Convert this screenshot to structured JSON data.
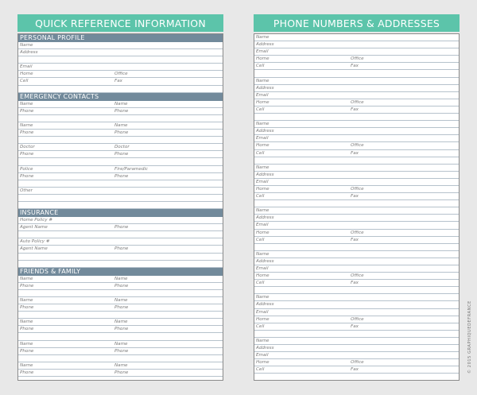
{
  "colors": {
    "header": "#5cc4aa",
    "section": "#728a9b",
    "background": "#e8e8e8"
  },
  "left": {
    "title": "QUICK REFERENCE INFORMATION",
    "sections": [
      {
        "title": "PERSONAL PROFILE",
        "rows": [
          [
            "Name",
            ""
          ],
          [
            "Address",
            ""
          ],
          [
            "",
            ""
          ],
          [
            "Email",
            ""
          ],
          [
            "Home",
            "Office"
          ],
          [
            "Cell",
            "Fax"
          ],
          [
            "",
            ""
          ]
        ]
      },
      {
        "title": "EMERGENCY CONTACTS",
        "rows": [
          [
            "Name",
            "Name"
          ],
          [
            "Phone",
            "Phone"
          ],
          [
            "",
            ""
          ],
          [
            "Name",
            "Name"
          ],
          [
            "Phone",
            "Phone"
          ],
          [
            "",
            ""
          ],
          [
            "Doctor",
            "Doctor"
          ],
          [
            "Phone",
            "Phone"
          ],
          [
            "",
            ""
          ],
          [
            "Police",
            "Fire/Paramedic"
          ],
          [
            "Phone",
            "Phone"
          ],
          [
            "",
            ""
          ],
          [
            "Other",
            ""
          ],
          [
            "",
            ""
          ],
          [
            "",
            ""
          ]
        ]
      },
      {
        "title": "INSURANCE",
        "rows": [
          [
            "Home Policy #",
            ""
          ],
          [
            "Agent Name",
            "Phone"
          ],
          [
            "",
            ""
          ],
          [
            "Auto Policy #",
            ""
          ],
          [
            "Agent Name",
            "Phone"
          ],
          [
            "",
            ""
          ],
          [
            "",
            ""
          ]
        ]
      },
      {
        "title": "FRIENDS & FAMILY",
        "rows": [
          [
            "Name",
            "Name"
          ],
          [
            "Phone",
            "Phone"
          ],
          [
            "",
            ""
          ],
          [
            "Name",
            "Name"
          ],
          [
            "Phone",
            "Phone"
          ],
          [
            "",
            ""
          ],
          [
            "Name",
            "Name"
          ],
          [
            "Phone",
            "Phone"
          ],
          [
            "",
            ""
          ],
          [
            "Name",
            "Name"
          ],
          [
            "Phone",
            "Phone"
          ],
          [
            "",
            ""
          ],
          [
            "Name",
            "Name"
          ],
          [
            "Phone",
            "Phone"
          ],
          [
            "",
            ""
          ]
        ]
      }
    ]
  },
  "right": {
    "title": "PHONE NUMBERS & ADDRESSES",
    "blocks": [
      [
        [
          "Name",
          ""
        ],
        [
          "Address",
          ""
        ],
        [
          "Email",
          ""
        ],
        [
          "Home",
          "Office"
        ],
        [
          "Cell",
          "Fax"
        ],
        [
          "",
          ""
        ]
      ],
      [
        [
          "Name",
          ""
        ],
        [
          "Address",
          ""
        ],
        [
          "Email",
          ""
        ],
        [
          "Home",
          "Office"
        ],
        [
          "Cell",
          "Fax"
        ],
        [
          "",
          ""
        ]
      ],
      [
        [
          "Name",
          ""
        ],
        [
          "Address",
          ""
        ],
        [
          "Email",
          ""
        ],
        [
          "Home",
          "Office"
        ],
        [
          "Cell",
          "Fax"
        ],
        [
          "",
          ""
        ]
      ],
      [
        [
          "Name",
          ""
        ],
        [
          "Address",
          ""
        ],
        [
          "Email",
          ""
        ],
        [
          "Home",
          "Office"
        ],
        [
          "Cell",
          "Fax"
        ],
        [
          "",
          ""
        ]
      ],
      [
        [
          "Name",
          ""
        ],
        [
          "Address",
          ""
        ],
        [
          "Email",
          ""
        ],
        [
          "Home",
          "Office"
        ],
        [
          "Cell",
          "Fax"
        ],
        [
          "",
          ""
        ]
      ],
      [
        [
          "Name",
          ""
        ],
        [
          "Address",
          ""
        ],
        [
          "Email",
          ""
        ],
        [
          "Home",
          "Office"
        ],
        [
          "Cell",
          "Fax"
        ],
        [
          "",
          ""
        ]
      ],
      [
        [
          "Name",
          ""
        ],
        [
          "Address",
          ""
        ],
        [
          "Email",
          ""
        ],
        [
          "Home",
          "Office"
        ],
        [
          "Cell",
          "Fax"
        ],
        [
          "",
          ""
        ]
      ],
      [
        [
          "Name",
          ""
        ],
        [
          "Address",
          ""
        ],
        [
          "Email",
          ""
        ],
        [
          "Home",
          "Office"
        ],
        [
          "Cell",
          "Fax"
        ],
        [
          "",
          ""
        ]
      ]
    ]
  },
  "copyright": "© 2015 GRAPHIQUEDEFRANCE"
}
